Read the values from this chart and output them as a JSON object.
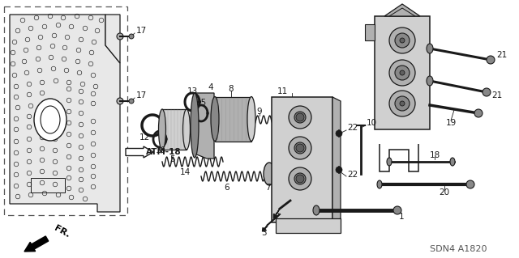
{
  "bg_color": "#ffffff",
  "fig_code": "SDN4 A1820",
  "line_color": "#1a1a1a",
  "gray1": "#d0d0d0",
  "gray2": "#b0b0b0",
  "gray3": "#888888",
  "gray4": "#606060"
}
